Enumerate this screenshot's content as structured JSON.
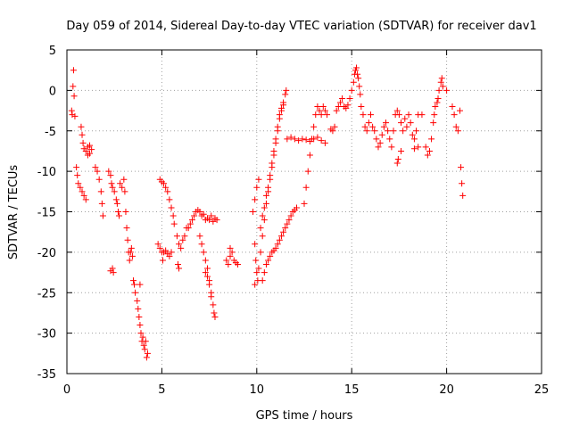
{
  "chart_data": {
    "type": "scatter",
    "title": "Day 059 of 2014, Sidereal Day-to-day VTEC variation (SDTVAR) for receiver dav1",
    "xlabel": "GPS time / hours",
    "ylabel": "SDTVAR / TECUs",
    "xlim": [
      0,
      25
    ],
    "ylim": [
      -35,
      5
    ],
    "xticks": [
      "0",
      "5",
      "10",
      "15",
      "20",
      "25"
    ],
    "yticks": [
      "5",
      "0",
      "-5",
      "-10",
      "-15",
      "-20",
      "-25",
      "-30",
      "-35"
    ],
    "grid": true,
    "marker": "+",
    "color": "#ff0000",
    "series": [
      {
        "name": "SDTVAR",
        "points": [
          [
            0.25,
            -2.5
          ],
          [
            0.28,
            -3.0
          ],
          [
            0.32,
            0.5
          ],
          [
            0.35,
            2.5
          ],
          [
            0.38,
            -0.7
          ],
          [
            0.42,
            -3.2
          ],
          [
            0.5,
            -9.5
          ],
          [
            0.55,
            -10.5
          ],
          [
            0.6,
            -11.5
          ],
          [
            0.7,
            -12.0
          ],
          [
            0.8,
            -12.5
          ],
          [
            0.9,
            -13.0
          ],
          [
            1.0,
            -13.5
          ],
          [
            0.75,
            -4.5
          ],
          [
            0.8,
            -5.5
          ],
          [
            0.85,
            -6.5
          ],
          [
            0.9,
            -7.2
          ],
          [
            1.0,
            -7.5
          ],
          [
            1.1,
            -7.0
          ],
          [
            1.2,
            -6.8
          ],
          [
            1.3,
            -7.3
          ],
          [
            1.1,
            -8.0
          ],
          [
            1.2,
            -7.8
          ],
          [
            1.5,
            -9.5
          ],
          [
            1.6,
            -10.0
          ],
          [
            1.7,
            -11.0
          ],
          [
            1.8,
            -12.5
          ],
          [
            1.85,
            -14.0
          ],
          [
            1.9,
            -15.5
          ],
          [
            2.2,
            -10.0
          ],
          [
            2.3,
            -10.5
          ],
          [
            2.35,
            -11.5
          ],
          [
            2.4,
            -12.0
          ],
          [
            2.5,
            -12.5
          ],
          [
            2.6,
            -13.5
          ],
          [
            2.65,
            -14.0
          ],
          [
            2.7,
            -15.0
          ],
          [
            2.75,
            -15.5
          ],
          [
            2.3,
            -22.3
          ],
          [
            2.4,
            -22.0
          ],
          [
            2.45,
            -22.5
          ],
          [
            2.8,
            -11.5
          ],
          [
            2.9,
            -12.0
          ],
          [
            3.0,
            -11.0
          ],
          [
            3.05,
            -12.5
          ],
          [
            3.1,
            -15.0
          ],
          [
            3.15,
            -17.0
          ],
          [
            3.2,
            -18.5
          ],
          [
            3.25,
            -20.0
          ],
          [
            3.3,
            -21.0
          ],
          [
            3.35,
            -20.0
          ],
          [
            3.4,
            -19.5
          ],
          [
            3.45,
            -20.5
          ],
          [
            3.5,
            -23.5
          ],
          [
            3.55,
            -24.0
          ],
          [
            3.6,
            -25.0
          ],
          [
            3.7,
            -26.0
          ],
          [
            3.75,
            -27.0
          ],
          [
            3.8,
            -28.0
          ],
          [
            3.85,
            -29.0
          ],
          [
            3.9,
            -30.0
          ],
          [
            3.95,
            -31.0
          ],
          [
            4.0,
            -30.5
          ],
          [
            4.05,
            -31.5
          ],
          [
            4.1,
            -32.0
          ],
          [
            4.15,
            -31.0
          ],
          [
            4.2,
            -33.0
          ],
          [
            4.25,
            -32.5
          ],
          [
            3.85,
            -24.0
          ],
          [
            4.8,
            -19.0
          ],
          [
            4.9,
            -19.5
          ],
          [
            5.0,
            -20.0
          ],
          [
            5.05,
            -21.0
          ],
          [
            5.1,
            -20.0
          ],
          [
            5.2,
            -19.8
          ],
          [
            5.3,
            -20.2
          ],
          [
            5.4,
            -20.5
          ],
          [
            5.5,
            -20.0
          ],
          [
            4.9,
            -11.0
          ],
          [
            5.0,
            -11.3
          ],
          [
            5.1,
            -11.5
          ],
          [
            5.2,
            -12.0
          ],
          [
            5.3,
            -12.5
          ],
          [
            5.4,
            -13.5
          ],
          [
            5.5,
            -14.5
          ],
          [
            5.6,
            -15.5
          ],
          [
            5.65,
            -16.5
          ],
          [
            5.8,
            -18.0
          ],
          [
            5.9,
            -19.0
          ],
          [
            6.0,
            -19.5
          ],
          [
            6.1,
            -18.5
          ],
          [
            6.2,
            -18.0
          ],
          [
            6.3,
            -17.0
          ],
          [
            5.85,
            -21.5
          ],
          [
            5.9,
            -22.0
          ],
          [
            6.4,
            -17.0
          ],
          [
            6.5,
            -16.5
          ],
          [
            6.6,
            -16.0
          ],
          [
            6.7,
            -15.5
          ],
          [
            6.8,
            -15.0
          ],
          [
            6.9,
            -14.8
          ],
          [
            7.0,
            -15.0
          ],
          [
            7.1,
            -15.5
          ],
          [
            7.2,
            -15.3
          ],
          [
            7.3,
            -16.0
          ],
          [
            7.4,
            -15.8
          ],
          [
            7.5,
            -16.0
          ],
          [
            7.6,
            -15.5
          ],
          [
            7.7,
            -16.2
          ],
          [
            7.8,
            -15.8
          ],
          [
            7.9,
            -16.0
          ],
          [
            7.0,
            -18.0
          ],
          [
            7.1,
            -19.0
          ],
          [
            7.2,
            -20.0
          ],
          [
            7.3,
            -21.0
          ],
          [
            7.4,
            -22.0
          ],
          [
            7.5,
            -23.5
          ],
          [
            7.6,
            -25.0
          ],
          [
            7.7,
            -26.5
          ],
          [
            7.75,
            -27.5
          ],
          [
            7.8,
            -28.0
          ],
          [
            7.3,
            -22.5
          ],
          [
            7.4,
            -23.0
          ],
          [
            7.5,
            -24.0
          ],
          [
            7.6,
            -25.5
          ],
          [
            8.4,
            -21.0
          ],
          [
            8.5,
            -21.5
          ],
          [
            8.6,
            -20.5
          ],
          [
            8.7,
            -20.0
          ],
          [
            8.8,
            -21.0
          ],
          [
            8.9,
            -21.3
          ],
          [
            9.0,
            -21.5
          ],
          [
            8.6,
            -19.5
          ],
          [
            9.8,
            -15.0
          ],
          [
            9.9,
            -13.5
          ],
          [
            10.0,
            -12.0
          ],
          [
            10.1,
            -11.0
          ],
          [
            9.9,
            -19.0
          ],
          [
            9.95,
            -21.0
          ],
          [
            10.0,
            -22.5
          ],
          [
            10.05,
            -23.5
          ],
          [
            9.9,
            -24.0
          ],
          [
            10.1,
            -22.0
          ],
          [
            10.2,
            -20.0
          ],
          [
            10.3,
            -18.0
          ],
          [
            10.4,
            -16.0
          ],
          [
            10.5,
            -14.0
          ],
          [
            10.6,
            -12.5
          ],
          [
            10.7,
            -11.0
          ],
          [
            10.8,
            -9.5
          ],
          [
            10.9,
            -8.0
          ],
          [
            11.0,
            -6.5
          ],
          [
            11.1,
            -5.0
          ],
          [
            11.2,
            -3.5
          ],
          [
            11.3,
            -2.5
          ],
          [
            11.4,
            -1.5
          ],
          [
            11.5,
            -0.5
          ],
          [
            11.55,
            0.0
          ],
          [
            10.2,
            -17.0
          ],
          [
            10.3,
            -15.5
          ],
          [
            10.4,
            -14.5
          ],
          [
            10.5,
            -13.0
          ],
          [
            10.6,
            -12.0
          ],
          [
            10.7,
            -10.5
          ],
          [
            10.8,
            -9.0
          ],
          [
            10.9,
            -7.5
          ],
          [
            11.0,
            -6.0
          ],
          [
            11.1,
            -4.5
          ],
          [
            11.2,
            -3.0
          ],
          [
            11.3,
            -2.2
          ],
          [
            11.4,
            -1.8
          ],
          [
            10.3,
            -23.5
          ],
          [
            10.4,
            -22.5
          ],
          [
            10.5,
            -21.5
          ],
          [
            10.6,
            -21.0
          ],
          [
            10.7,
            -20.5
          ],
          [
            10.8,
            -20.0
          ],
          [
            10.9,
            -19.8
          ],
          [
            11.0,
            -19.5
          ],
          [
            11.1,
            -19.0
          ],
          [
            11.2,
            -18.5
          ],
          [
            11.3,
            -18.0
          ],
          [
            11.4,
            -17.5
          ],
          [
            11.5,
            -17.0
          ],
          [
            11.6,
            -16.5
          ],
          [
            11.7,
            -16.0
          ],
          [
            11.8,
            -15.5
          ],
          [
            11.9,
            -15.0
          ],
          [
            12.0,
            -14.8
          ],
          [
            12.1,
            -14.5
          ],
          [
            11.6,
            -6.0
          ],
          [
            11.8,
            -5.8
          ],
          [
            12.0,
            -6.0
          ],
          [
            12.2,
            -6.2
          ],
          [
            12.4,
            -6.0
          ],
          [
            12.6,
            -6.1
          ],
          [
            12.8,
            -6.3
          ],
          [
            13.0,
            -6.0
          ],
          [
            13.2,
            -5.8
          ],
          [
            13.4,
            -6.2
          ],
          [
            13.6,
            -6.5
          ],
          [
            12.5,
            -14.0
          ],
          [
            12.6,
            -12.0
          ],
          [
            12.7,
            -10.0
          ],
          [
            12.8,
            -8.0
          ],
          [
            12.9,
            -6.0
          ],
          [
            13.0,
            -4.5
          ],
          [
            13.1,
            -3.0
          ],
          [
            13.2,
            -2.0
          ],
          [
            13.3,
            -2.5
          ],
          [
            13.4,
            -3.0
          ],
          [
            13.5,
            -2.0
          ],
          [
            13.6,
            -2.5
          ],
          [
            13.7,
            -3.0
          ],
          [
            13.9,
            -4.8
          ],
          [
            14.0,
            -5.0
          ],
          [
            14.1,
            -4.5
          ],
          [
            14.2,
            -2.5
          ],
          [
            14.3,
            -2.0
          ],
          [
            14.4,
            -1.5
          ],
          [
            14.5,
            -1.0
          ],
          [
            14.6,
            -2.0
          ],
          [
            14.7,
            -2.2
          ],
          [
            14.8,
            -1.8
          ],
          [
            14.9,
            -1.0
          ],
          [
            15.0,
            0.0
          ],
          [
            15.1,
            1.0
          ],
          [
            15.15,
            2.0
          ],
          [
            15.2,
            2.5
          ],
          [
            15.25,
            2.8
          ],
          [
            15.3,
            2.0
          ],
          [
            15.35,
            1.5
          ],
          [
            15.4,
            0.5
          ],
          [
            15.45,
            -0.5
          ],
          [
            15.5,
            -2.0
          ],
          [
            15.6,
            -3.0
          ],
          [
            15.7,
            -4.5
          ],
          [
            15.8,
            -5.0
          ],
          [
            15.9,
            -4.0
          ],
          [
            16.0,
            -3.0
          ],
          [
            16.1,
            -4.5
          ],
          [
            16.2,
            -5.0
          ],
          [
            16.3,
            -6.0
          ],
          [
            16.4,
            -7.0
          ],
          [
            16.5,
            -6.5
          ],
          [
            16.6,
            -5.5
          ],
          [
            16.7,
            -4.5
          ],
          [
            16.8,
            -4.0
          ],
          [
            16.9,
            -5.0
          ],
          [
            17.0,
            -6.0
          ],
          [
            17.1,
            -7.0
          ],
          [
            17.2,
            -5.0
          ],
          [
            17.3,
            -3.0
          ],
          [
            17.4,
            -2.5
          ],
          [
            17.5,
            -3.0
          ],
          [
            17.6,
            -4.0
          ],
          [
            17.7,
            -5.0
          ],
          [
            17.8,
            -3.5
          ],
          [
            17.9,
            -4.5
          ],
          [
            18.0,
            -3.0
          ],
          [
            18.1,
            -4.0
          ],
          [
            18.2,
            -5.5
          ],
          [
            18.3,
            -6.0
          ],
          [
            18.4,
            -5.0
          ],
          [
            17.4,
            -9.0
          ],
          [
            17.45,
            -8.5
          ],
          [
            17.6,
            -7.5
          ],
          [
            18.5,
            -3.0
          ],
          [
            18.7,
            -3.0
          ],
          [
            18.9,
            -7.0
          ],
          [
            19.0,
            -8.0
          ],
          [
            19.1,
            -7.5
          ],
          [
            19.2,
            -6.0
          ],
          [
            19.3,
            -4.0
          ],
          [
            19.35,
            -3.0
          ],
          [
            19.4,
            -2.0
          ],
          [
            19.5,
            -1.5
          ],
          [
            19.55,
            -1.0
          ],
          [
            19.6,
            0.0
          ],
          [
            19.7,
            1.0
          ],
          [
            19.75,
            1.5
          ],
          [
            19.8,
            0.5
          ],
          [
            20.0,
            0.0
          ],
          [
            18.5,
            -7.0
          ],
          [
            18.3,
            -7.2
          ],
          [
            20.3,
            -2.0
          ],
          [
            20.4,
            -3.0
          ],
          [
            20.5,
            -4.5
          ],
          [
            20.6,
            -5.0
          ],
          [
            20.7,
            -2.5
          ],
          [
            20.75,
            -9.5
          ],
          [
            20.8,
            -11.5
          ],
          [
            20.85,
            -13.0
          ]
        ]
      }
    ]
  }
}
